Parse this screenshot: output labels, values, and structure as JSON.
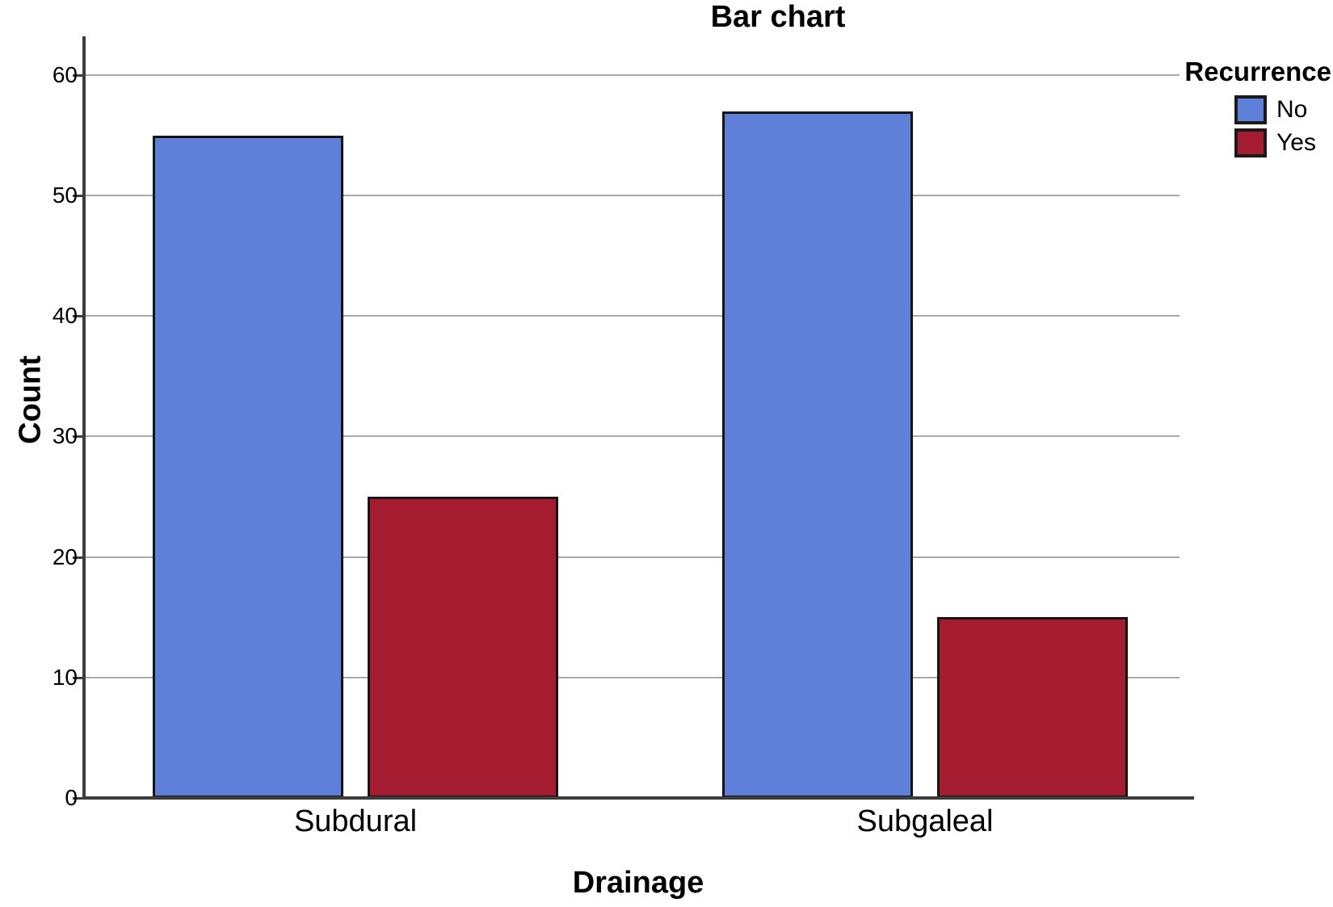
{
  "chart_data": {
    "type": "bar",
    "title": "Bar chart",
    "xlabel": "Drainage",
    "ylabel": "Count",
    "categories": [
      "Subdural",
      "Subgaleal"
    ],
    "series": [
      {
        "name": "No",
        "color": "#5f80d8",
        "values": [
          55,
          57
        ]
      },
      {
        "name": "Yes",
        "color": "#a51c30",
        "values": [
          25,
          15
        ]
      }
    ],
    "legend_title": "Recurrence",
    "legend_position": "top-right",
    "ylim": [
      0,
      60
    ],
    "yticks": [
      0,
      10,
      20,
      30,
      40,
      50,
      60
    ],
    "grid": true,
    "background": "#ffffff",
    "gridline_color": "#a9a9a9",
    "axis_color": "#3d3d3d",
    "bar_border_color": "#141414"
  }
}
